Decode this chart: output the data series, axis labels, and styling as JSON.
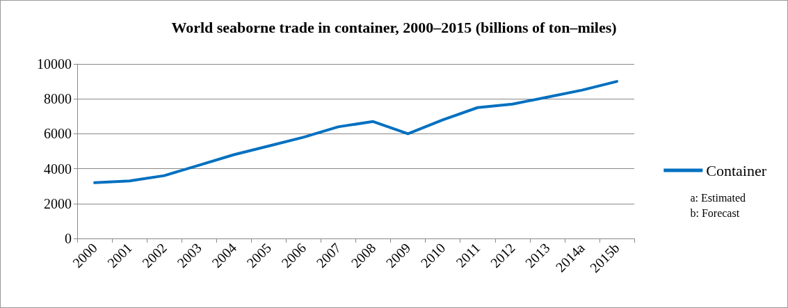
{
  "chart_data": {
    "type": "line",
    "title": "World seaborne trade in container, 2000–2015 (billions of ton–miles)",
    "categories": [
      "2000",
      "2001",
      "2002",
      "2003",
      "2004",
      "2005",
      "2006",
      "2007",
      "2008",
      "2009",
      "2010",
      "2011",
      "2012",
      "2013",
      "2014a",
      "2015b"
    ],
    "series": [
      {
        "name": "Container",
        "color": "#0070c0",
        "values": [
          3200,
          3300,
          3600,
          4200,
          4800,
          5300,
          5800,
          6400,
          6700,
          6000,
          6800,
          7500,
          7700,
          8100,
          8500,
          9000
        ]
      }
    ],
    "ylim": [
      0,
      10000
    ],
    "yticks": [
      0,
      2000,
      4000,
      6000,
      8000,
      10000
    ],
    "grid": "y",
    "legend": "right",
    "marker": "none",
    "line_style": "solid",
    "annotations": [
      "a: Estimated",
      "b: Forecast"
    ]
  }
}
